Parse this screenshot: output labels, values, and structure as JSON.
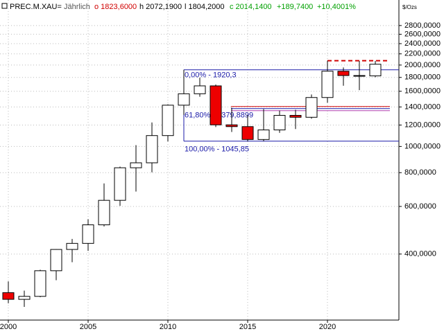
{
  "chart_data": {
    "type": "candlestick",
    "header": {
      "symbol": "PREC.M.XAU=",
      "period": "Jährlich",
      "open": "o 1823,6000",
      "high": "h 2072,1900",
      "low": "l 1804,2000",
      "close": "c 2014,1400",
      "change": "+189,7400",
      "change_pct": "+10,4001%"
    },
    "unit": "$/Ozs",
    "categories": [
      "2000",
      null,
      null,
      null,
      null,
      "2005",
      null,
      null,
      null,
      null,
      "2010",
      null,
      null,
      null,
      null,
      "2015",
      null,
      null,
      null,
      null,
      "2020",
      null,
      null,
      null
    ],
    "open": [
      288,
      272,
      279,
      347,
      416,
      438,
      513,
      632,
      834,
      870,
      1097,
      1421,
      1566,
      1675,
      1202,
      1184,
      1061,
      1151,
      1303,
      1282,
      1517,
      1898,
      1829,
      1823.6
    ],
    "high": [
      317,
      293,
      350,
      417,
      455,
      538,
      730,
      842,
      1011,
      1227,
      1431,
      1921,
      1796,
      1695,
      1392,
      1307,
      1375,
      1357,
      1366,
      1557,
      2075,
      1959,
      2070,
      2072.19
    ],
    "low": [
      263,
      255,
      277,
      320,
      373,
      411,
      506,
      603,
      681,
      802,
      1044,
      1308,
      1527,
      1180,
      1131,
      1046,
      1046,
      1123,
      1160,
      1266,
      1451,
      1677,
      1615,
      1804.2
    ],
    "close": [
      272,
      279,
      347,
      416,
      438,
      513,
      632,
      834,
      870,
      1097,
      1421,
      1566,
      1675,
      1202,
      1184,
      1061,
      1151,
      1303,
      1282,
      1517,
      1898,
      1829,
      1824,
      2014.14
    ],
    "up_color": "#ffffff",
    "down_color": "#ee0000",
    "log_scale": true,
    "grid": true,
    "ylim": [
      228,
      3480
    ],
    "yticks": [
      {
        "value": 400,
        "label": "400,0000"
      },
      {
        "value": 600,
        "label": "600,0000"
      },
      {
        "value": 800,
        "label": "800,0000"
      },
      {
        "value": 1000,
        "label": "1000,0000"
      },
      {
        "value": 1200,
        "label": "1200,0000"
      },
      {
        "value": 1400,
        "label": "1400,0000"
      },
      {
        "value": 1600,
        "label": "1600,0000"
      },
      {
        "value": 1800,
        "label": "1800,0000"
      },
      {
        "value": 2000,
        "label": "2000,0000"
      },
      {
        "value": 2200,
        "label": "2200,0000"
      },
      {
        "value": 2400,
        "label": "2400,0000"
      },
      {
        "value": 2600,
        "label": "2600,0000"
      },
      {
        "value": 2800,
        "label": "2800,0000"
      }
    ],
    "fib_levels": [
      {
        "value": 1920.3,
        "label": "0,00% - 1920,3"
      },
      {
        "value": 1379.8899,
        "label": "61,80% - 1379,8899"
      },
      {
        "value": 1045.85,
        "label": "100,00% - 1045,85"
      }
    ],
    "dashed_level": 2075
  }
}
